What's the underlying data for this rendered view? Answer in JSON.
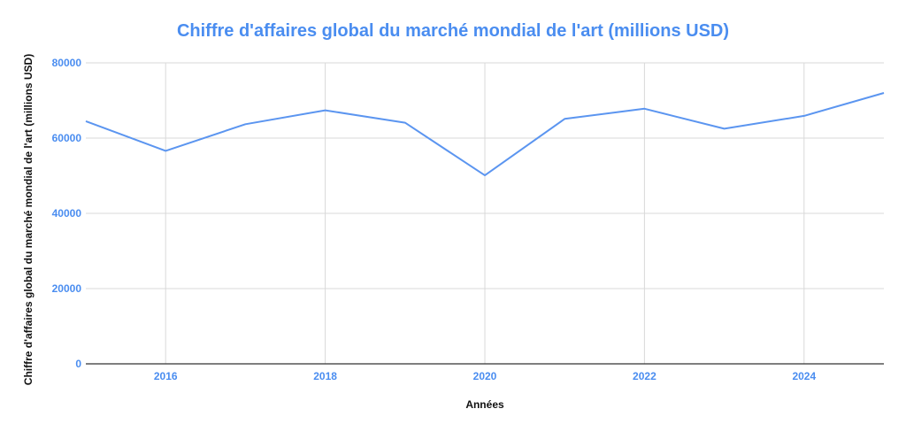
{
  "chart_data": {
    "type": "line",
    "title": "Chiffre d'affaires global du marché mondial de l'art (millions USD)",
    "xlabel": "Années",
    "ylabel": "Chiffre d'affaires global du marché mondial de l'art (millions USD)",
    "x": [
      2015,
      2016,
      2017,
      2018,
      2019,
      2020,
      2021,
      2022,
      2023,
      2024,
      2025
    ],
    "series": [
      {
        "values": [
          64500,
          56600,
          63700,
          67400,
          64100,
          50100,
          65100,
          67800,
          62500,
          65900,
          72000
        ]
      }
    ],
    "xlim": [
      2015,
      2025
    ],
    "ylim": [
      0,
      80000
    ],
    "x_ticks": [
      "2016",
      "2018",
      "2020",
      "2022",
      "2024"
    ],
    "y_ticks": [
      "0",
      "20000",
      "40000",
      "60000",
      "80000"
    ],
    "grid": true,
    "colors": {
      "line": "#5b95f0",
      "title": "#4a8df0",
      "tick_labels": "#4a8df0",
      "grid": "#d9d9d9",
      "axis": "#333333"
    }
  }
}
